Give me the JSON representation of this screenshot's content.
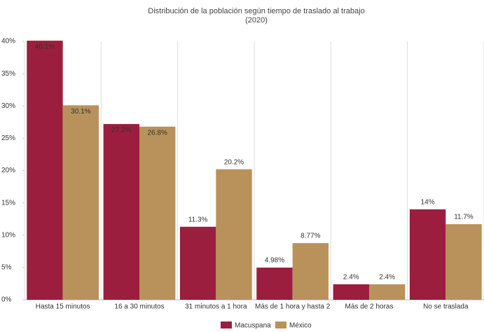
{
  "chart_data": {
    "type": "bar",
    "title": "Distribución de la población según tiempo de traslado al trabajo",
    "subtitle": "(2020)",
    "categories": [
      "Hasta 15 minutos",
      "16 a 30 minutos",
      "31 minutos a 1 hora",
      "Más de 1 hora y hasta 2",
      "Más de 2 horas",
      "No se traslada"
    ],
    "series": [
      {
        "name": "Macuspana",
        "color": "#9b1e3e",
        "values": [
          40.1,
          27.2,
          11.3,
          4.98,
          2.4,
          14
        ],
        "value_labels": [
          "40.1%",
          "27.2%",
          "11.3%",
          "4.98%",
          "2.4%",
          "14%"
        ]
      },
      {
        "name": "México",
        "color": "#b8925a",
        "values": [
          30.1,
          26.8,
          20.2,
          8.77,
          2.4,
          11.7
        ],
        "value_labels": [
          "30.1%",
          "26.8%",
          "20.2%",
          "8.77%",
          "2.4%",
          "11.7%"
        ]
      }
    ],
    "ylim": [
      0,
      40
    ],
    "yticks": [
      {
        "value": 0,
        "label": "0%"
      },
      {
        "value": 5,
        "label": "5%"
      },
      {
        "value": 10,
        "label": "10%"
      },
      {
        "value": 15,
        "label": "15%"
      },
      {
        "value": 20,
        "label": "20%"
      },
      {
        "value": 25,
        "label": "25%"
      },
      {
        "value": 30,
        "label": "30%"
      },
      {
        "value": 35,
        "label": "35%"
      },
      {
        "value": 40,
        "label": "40%"
      }
    ],
    "legend": "bottom"
  }
}
